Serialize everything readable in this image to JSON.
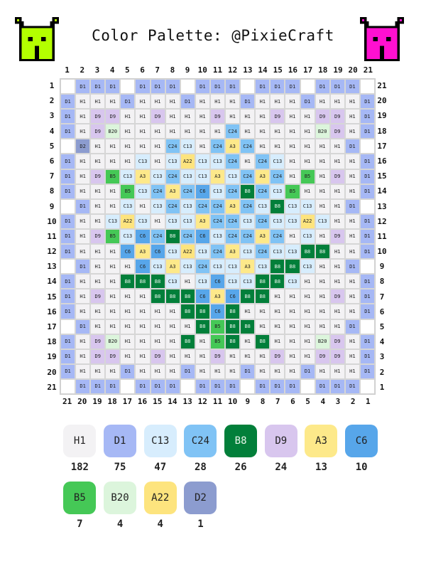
{
  "title": "Color Palette: @PixieCraft",
  "icons": {
    "left": {
      "name": "lime-monster-icon",
      "color": "#b4ff00"
    },
    "right": {
      "name": "magenta-monster-icon",
      "color": "#ff10d0"
    }
  },
  "column_numbers_top": [
    "1",
    "2",
    "3",
    "4",
    "5",
    "6",
    "7",
    "8",
    "9",
    "10",
    "11",
    "12",
    "13",
    "14",
    "15",
    "16",
    "17",
    "18",
    "19",
    "20",
    "21"
  ],
  "column_numbers_bottom": [
    "21",
    "20",
    "19",
    "18",
    "17",
    "16",
    "15",
    "14",
    "13",
    "12",
    "11",
    "10",
    "9",
    "8",
    "7",
    "6",
    "5",
    "4",
    "3",
    "2",
    "1"
  ],
  "row_numbers_left": [
    "1",
    "2",
    "3",
    "4",
    "5",
    "6",
    "7",
    "8",
    "9",
    "10",
    "11",
    "12",
    "13",
    "14",
    "15",
    "16",
    "17",
    "18",
    "19",
    "20",
    "21"
  ],
  "row_numbers_right": [
    "21",
    "20",
    "19",
    "18",
    "17",
    "16",
    "15",
    "14",
    "13",
    "12",
    "11",
    "10",
    "9",
    "8",
    "7",
    "6",
    "5",
    "4",
    "3",
    "2",
    "1"
  ],
  "colors": {
    "H1": "#f3f2f4",
    "D1": "#a6b8f5",
    "C13": "#d7edfd",
    "C24": "#80c3f5",
    "B8": "#027f3a",
    "D9": "#d8c6ee",
    "A3": "#fde98a",
    "C6": "#57a6ea",
    "B5": "#45c856",
    "B20": "#dcf5dc",
    "A22": "#fde47e",
    "D2": "#8c9ccf"
  },
  "grid": [
    [
      "",
      "D1",
      "D1",
      "D1",
      "",
      "D1",
      "D1",
      "D1",
      "",
      "D1",
      "D1",
      "D1",
      "",
      "D1",
      "D1",
      "D1",
      "",
      "D1",
      "D1",
      "D1",
      ""
    ],
    [
      "D1",
      "H1",
      "H1",
      "H1",
      "D1",
      "H1",
      "H1",
      "H1",
      "D1",
      "H1",
      "H1",
      "H1",
      "D1",
      "H1",
      "H1",
      "H1",
      "D1",
      "H1",
      "H1",
      "H1",
      "D1"
    ],
    [
      "D1",
      "H1",
      "D9",
      "D9",
      "H1",
      "H1",
      "D9",
      "H1",
      "H1",
      "H1",
      "D9",
      "H1",
      "H1",
      "H1",
      "D9",
      "H1",
      "H1",
      "D9",
      "D9",
      "H1",
      "D1"
    ],
    [
      "D1",
      "H1",
      "D9",
      "B20",
      "H1",
      "H1",
      "H1",
      "H1",
      "H1",
      "H1",
      "H1",
      "C24",
      "H1",
      "H1",
      "H1",
      "H1",
      "H1",
      "B20",
      "D9",
      "H1",
      "D1"
    ],
    [
      "",
      "D2",
      "H1",
      "H1",
      "H1",
      "H1",
      "H1",
      "C24",
      "C13",
      "H1",
      "C24",
      "A3",
      "C24",
      "H1",
      "H1",
      "H1",
      "H1",
      "H1",
      "H1",
      "D1",
      ""
    ],
    [
      "D1",
      "H1",
      "H1",
      "H1",
      "H1",
      "C13",
      "H1",
      "C13",
      "A22",
      "C13",
      "C13",
      "C24",
      "H1",
      "C24",
      "C13",
      "H1",
      "H1",
      "H1",
      "H1",
      "H1",
      "D1"
    ],
    [
      "D1",
      "H1",
      "D9",
      "B5",
      "C13",
      "A3",
      "C13",
      "C24",
      "C13",
      "C13",
      "A3",
      "C13",
      "C24",
      "A3",
      "C24",
      "H1",
      "B5",
      "H1",
      "D9",
      "H1",
      "D1"
    ],
    [
      "D1",
      "H1",
      "H1",
      "H1",
      "B5",
      "C13",
      "C24",
      "A3",
      "C24",
      "C6",
      "C13",
      "C24",
      "B8",
      "C24",
      "C13",
      "B5",
      "H1",
      "H1",
      "H1",
      "H1",
      "D1"
    ],
    [
      "",
      "D1",
      "H1",
      "H1",
      "C13",
      "H1",
      "C13",
      "C24",
      "C13",
      "C24",
      "C24",
      "A3",
      "C24",
      "C13",
      "B8",
      "C13",
      "C13",
      "H1",
      "H1",
      "D1",
      ""
    ],
    [
      "D1",
      "H1",
      "H1",
      "C13",
      "A22",
      "C13",
      "H1",
      "C13",
      "C13",
      "A3",
      "C24",
      "C24",
      "C13",
      "C24",
      "C13",
      "C13",
      "A22",
      "C13",
      "H1",
      "H1",
      "D1"
    ],
    [
      "D1",
      "H1",
      "D9",
      "B5",
      "C13",
      "C6",
      "C24",
      "B8",
      "C24",
      "C6",
      "C13",
      "C24",
      "C24",
      "A3",
      "C24",
      "H1",
      "C13",
      "H1",
      "D9",
      "H1",
      "D1"
    ],
    [
      "D1",
      "H1",
      "H1",
      "H1",
      "C6",
      "A3",
      "C6",
      "C13",
      "A22",
      "C13",
      "C24",
      "A3",
      "C13",
      "C24",
      "C13",
      "C13",
      "B8",
      "B8",
      "H1",
      "H1",
      "D1"
    ],
    [
      "",
      "D1",
      "H1",
      "H1",
      "H1",
      "C6",
      "C13",
      "A3",
      "C13",
      "C24",
      "C13",
      "C13",
      "A3",
      "C13",
      "B8",
      "B8",
      "C13",
      "H1",
      "H1",
      "D1",
      ""
    ],
    [
      "D1",
      "H1",
      "H1",
      "H1",
      "B8",
      "B8",
      "B8",
      "C13",
      "H1",
      "C13",
      "C6",
      "C13",
      "C13",
      "B8",
      "B8",
      "C13",
      "H1",
      "H1",
      "H1",
      "H1",
      "D1"
    ],
    [
      "D1",
      "H1",
      "D9",
      "H1",
      "H1",
      "H1",
      "B8",
      "B8",
      "B8",
      "C6",
      "A3",
      "C6",
      "B8",
      "B8",
      "H1",
      "H1",
      "H1",
      "H1",
      "D9",
      "H1",
      "D1"
    ],
    [
      "D1",
      "H1",
      "H1",
      "H1",
      "H1",
      "H1",
      "H1",
      "H1",
      "B8",
      "B8",
      "C6",
      "B8",
      "H1",
      "H1",
      "H1",
      "H1",
      "H1",
      "H1",
      "H1",
      "H1",
      "D1"
    ],
    [
      "",
      "D1",
      "H1",
      "H1",
      "H1",
      "H1",
      "H1",
      "H1",
      "H1",
      "B8",
      "B5",
      "B8",
      "B8",
      "H1",
      "H1",
      "H1",
      "H1",
      "H1",
      "H1",
      "D1",
      ""
    ],
    [
      "D1",
      "H1",
      "D9",
      "B20",
      "H1",
      "H1",
      "H1",
      "H1",
      "B8",
      "H1",
      "B5",
      "B8",
      "H1",
      "B8",
      "H1",
      "H1",
      "H1",
      "B20",
      "D9",
      "H1",
      "D1"
    ],
    [
      "D1",
      "H1",
      "D9",
      "D9",
      "H1",
      "H1",
      "D9",
      "H1",
      "H1",
      "H1",
      "D9",
      "H1",
      "H1",
      "H1",
      "D9",
      "H1",
      "H1",
      "D9",
      "D9",
      "H1",
      "D1"
    ],
    [
      "D1",
      "H1",
      "H1",
      "H1",
      "D1",
      "H1",
      "H1",
      "H1",
      "D1",
      "H1",
      "H1",
      "H1",
      "D1",
      "H1",
      "H1",
      "H1",
      "D1",
      "H1",
      "H1",
      "H1",
      "D1"
    ],
    [
      "",
      "D1",
      "D1",
      "D1",
      "",
      "D1",
      "D1",
      "D1",
      "",
      "D1",
      "D1",
      "D1",
      "",
      "D1",
      "D1",
      "D1",
      "",
      "D1",
      "D1",
      "D1",
      ""
    ]
  ],
  "legend": [
    {
      "code": "H1",
      "count": "182"
    },
    {
      "code": "D1",
      "count": "75"
    },
    {
      "code": "C13",
      "count": "47"
    },
    {
      "code": "C24",
      "count": "28"
    },
    {
      "code": "B8",
      "count": "26"
    },
    {
      "code": "D9",
      "count": "24"
    },
    {
      "code": "A3",
      "count": "13"
    },
    {
      "code": "C6",
      "count": "10"
    },
    {
      "code": "B5",
      "count": "7"
    },
    {
      "code": "B20",
      "count": "4"
    },
    {
      "code": "A22",
      "count": "4"
    },
    {
      "code": "D2",
      "count": "1"
    }
  ]
}
